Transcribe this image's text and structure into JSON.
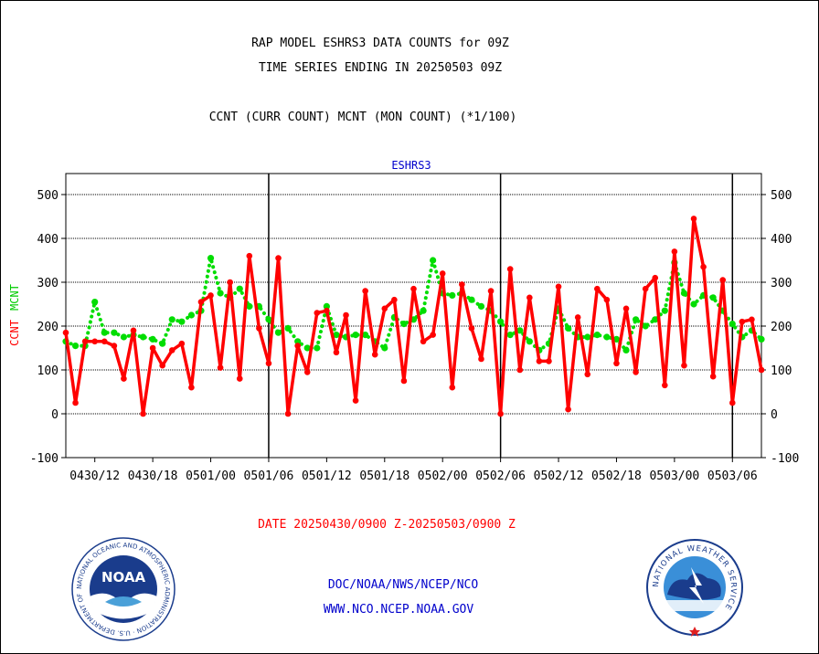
{
  "header": {
    "title_line1": "RAP MODEL ESHRS3 DATA COUNTS for 09Z",
    "title_line2": "TIME SERIES ENDING IN 20250503 09Z",
    "subtitle": "CCNT (CURR COUNT) MCNT (MON COUNT) (*1/100)"
  },
  "footer": {
    "date_range": "DATE 20250430/0900 Z-20250503/0900 Z",
    "org": "DOC/NOAA/NWS/NCEP/NCO",
    "url": "WWW.NCO.NCEP.NOAA.GOV"
  },
  "logos": {
    "noaa_text": "NOAA",
    "noaa_ring": "NATIONAL OCEANIC AND ATMOSPHERIC ADMINISTRATION · U.S. DEPARTMENT OF COMMERCE ·",
    "nws_ring": "NATIONAL WEATHER SERVICE"
  },
  "colors": {
    "ccnt": "#ff0000",
    "mcnt": "#00dd00",
    "label_blue": "#0000cc",
    "date_red": "#ff0000"
  },
  "chart_data": {
    "type": "line",
    "title": "ESHRS3",
    "ylabel_ccnt": "CCNT",
    "ylabel_mcnt": "MCNT",
    "ylim": [
      -100,
      550
    ],
    "yticks": [
      -100,
      0,
      100,
      200,
      300,
      400,
      500
    ],
    "grid": true,
    "xlim": [
      0,
      72
    ],
    "xticks": [
      {
        "x": 3,
        "label": "0430/12"
      },
      {
        "x": 9,
        "label": "0430/18"
      },
      {
        "x": 15,
        "label": "0501/00"
      },
      {
        "x": 21,
        "label": "0501/06"
      },
      {
        "x": 27,
        "label": "0501/12"
      },
      {
        "x": 33,
        "label": "0501/18"
      },
      {
        "x": 39,
        "label": "0502/00"
      },
      {
        "x": 45,
        "label": "0502/06"
      },
      {
        "x": 51,
        "label": "0502/12"
      },
      {
        "x": 57,
        "label": "0502/18"
      },
      {
        "x": 63,
        "label": "0503/00"
      },
      {
        "x": 69,
        "label": "0503/06"
      }
    ],
    "day_separators": [
      21,
      45,
      69
    ],
    "series": [
      {
        "name": "CCNT",
        "style": "solid",
        "values": [
          185,
          25,
          165,
          165,
          165,
          155,
          80,
          190,
          0,
          150,
          110,
          145,
          160,
          60,
          255,
          270,
          105,
          300,
          80,
          360,
          195,
          115,
          355,
          0,
          155,
          95,
          230,
          235,
          140,
          225,
          30,
          280,
          135,
          240,
          260,
          75,
          285,
          165,
          180,
          320,
          60,
          295,
          195,
          125,
          280,
          0,
          330,
          100,
          265,
          120,
          120,
          290,
          10,
          220,
          90,
          285,
          260,
          115,
          240,
          95,
          285,
          310,
          65,
          370,
          110,
          445,
          335,
          85,
          305,
          25,
          210,
          215,
          100
        ]
      },
      {
        "name": "MCNT",
        "style": "dotted",
        "values": [
          165,
          155,
          155,
          255,
          185,
          185,
          175,
          180,
          175,
          170,
          160,
          215,
          210,
          225,
          235,
          355,
          275,
          265,
          285,
          245,
          245,
          215,
          185,
          195,
          165,
          150,
          150,
          245,
          180,
          175,
          180,
          180,
          165,
          150,
          220,
          205,
          215,
          235,
          350,
          275,
          270,
          275,
          260,
          245,
          235,
          210,
          180,
          190,
          165,
          145,
          160,
          240,
          195,
          175,
          175,
          180,
          175,
          170,
          145,
          215,
          200,
          215,
          235,
          345,
          275,
          250,
          270,
          265,
          235,
          205,
          175,
          190,
          170
        ]
      }
    ]
  }
}
